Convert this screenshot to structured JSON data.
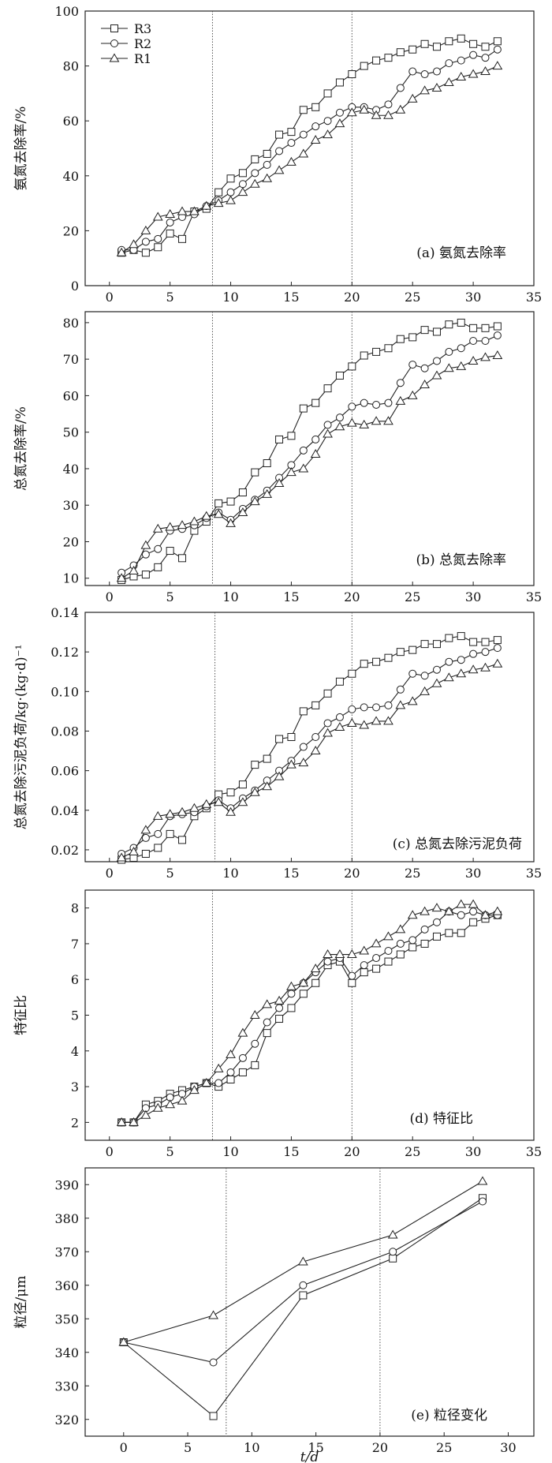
{
  "chart_data": [
    {
      "type": "line",
      "panel_label": "(a) 氨氮去除率",
      "ylabel": "氨氮去除率/%",
      "xlim": [
        -2,
        35
      ],
      "ylim": [
        0,
        100
      ],
      "xticks": [
        0,
        5,
        10,
        15,
        20,
        25,
        30,
        35
      ],
      "yticks": [
        0,
        20,
        40,
        60,
        80,
        100
      ],
      "xtick_labels": [
        "0",
        "5",
        "10",
        "15",
        "20",
        "25",
        "30",
        "35"
      ],
      "ytick_labels": [
        "0",
        "20",
        "40",
        "60",
        "80",
        "100"
      ],
      "vlines": [
        8.5,
        20
      ],
      "legend": [
        "R3",
        "R2",
        "R1"
      ],
      "legend_position": "top-left",
      "series": [
        {
          "name": "R3",
          "marker": "square",
          "x": [
            1,
            2,
            3,
            4,
            5,
            6,
            7,
            8,
            9,
            10,
            11,
            12,
            13,
            14,
            15,
            16,
            17,
            18,
            19,
            20,
            21,
            22,
            23,
            24,
            25,
            26,
            27,
            28,
            29,
            30,
            31,
            32
          ],
          "values": [
            12,
            13,
            12,
            14,
            19,
            17,
            27,
            28,
            34,
            39,
            41,
            46,
            48,
            55,
            56,
            64,
            65,
            70,
            74,
            77,
            80,
            82,
            83,
            85,
            86,
            88,
            87,
            89,
            90,
            88,
            87,
            89
          ]
        },
        {
          "name": "R2",
          "marker": "circle",
          "x": [
            1,
            2,
            3,
            4,
            5,
            6,
            7,
            8,
            9,
            10,
            11,
            12,
            13,
            14,
            15,
            16,
            17,
            18,
            19,
            20,
            21,
            22,
            23,
            24,
            25,
            26,
            27,
            28,
            29,
            30,
            31,
            32
          ],
          "values": [
            13,
            13,
            16,
            17,
            23,
            25,
            26,
            29,
            31,
            34,
            37,
            41,
            44,
            49,
            52,
            55,
            58,
            60,
            63,
            65,
            65,
            64,
            66,
            72,
            78,
            77,
            78,
            81,
            82,
            84,
            83,
            86
          ]
        },
        {
          "name": "R1",
          "marker": "triangle",
          "x": [
            1,
            2,
            3,
            4,
            5,
            6,
            7,
            8,
            9,
            10,
            11,
            12,
            13,
            14,
            15,
            16,
            17,
            18,
            19,
            20,
            21,
            22,
            23,
            24,
            25,
            26,
            27,
            28,
            29,
            30,
            31,
            32
          ],
          "values": [
            12,
            15,
            20,
            25,
            26,
            27,
            27,
            29,
            30,
            31,
            34,
            37,
            39,
            42,
            45,
            48,
            53,
            55,
            59,
            63,
            64,
            62,
            62,
            64,
            68,
            71,
            72,
            74,
            76,
            77,
            78,
            80
          ]
        }
      ]
    },
    {
      "type": "line",
      "panel_label": "(b) 总氮去除率",
      "ylabel": "总氮去除率/%",
      "xlim": [
        -2,
        35
      ],
      "ylim": [
        8,
        83
      ],
      "xticks": [
        0,
        5,
        10,
        15,
        20,
        25,
        30,
        35
      ],
      "yticks": [
        10,
        20,
        30,
        40,
        50,
        60,
        70,
        80
      ],
      "xtick_labels": [
        "0",
        "5",
        "10",
        "15",
        "20",
        "25",
        "30",
        "35"
      ],
      "ytick_labels": [
        "10",
        "20",
        "30",
        "40",
        "50",
        "60",
        "70",
        "80"
      ],
      "vlines": [
        8.5,
        20
      ],
      "series": [
        {
          "name": "R3",
          "marker": "square",
          "x": [
            1,
            2,
            3,
            4,
            5,
            6,
            7,
            8,
            9,
            10,
            11,
            12,
            13,
            14,
            15,
            16,
            17,
            18,
            19,
            20,
            21,
            22,
            23,
            24,
            25,
            26,
            27,
            28,
            29,
            30,
            31,
            32
          ],
          "values": [
            9.5,
            10.5,
            11,
            13,
            17.5,
            15.5,
            23,
            25.5,
            30.5,
            31,
            33.5,
            39,
            41.5,
            48,
            49,
            56.5,
            58,
            62,
            65.5,
            68,
            71,
            72,
            73,
            75.5,
            76,
            78,
            77.5,
            79.5,
            80,
            78.5,
            78.5,
            79
          ]
        },
        {
          "name": "R2",
          "marker": "circle",
          "x": [
            1,
            2,
            3,
            4,
            5,
            6,
            7,
            8,
            9,
            10,
            11,
            12,
            13,
            14,
            15,
            16,
            17,
            18,
            19,
            20,
            21,
            22,
            23,
            24,
            25,
            26,
            27,
            28,
            29,
            30,
            31,
            32
          ],
          "values": [
            11.5,
            13.5,
            16.5,
            18,
            23,
            23.5,
            24.5,
            26.5,
            28,
            26,
            29,
            31.5,
            34,
            37.5,
            41,
            45,
            48,
            52,
            54,
            57,
            58,
            57.5,
            58,
            63.5,
            68.5,
            67.5,
            69.5,
            72,
            73,
            75,
            75,
            76.5
          ]
        },
        {
          "name": "R1",
          "marker": "triangle",
          "x": [
            1,
            2,
            3,
            4,
            5,
            6,
            7,
            8,
            9,
            10,
            11,
            12,
            13,
            14,
            15,
            16,
            17,
            18,
            19,
            20,
            21,
            22,
            23,
            24,
            25,
            26,
            27,
            28,
            29,
            30,
            31,
            32
          ],
          "values": [
            10,
            12,
            19,
            23.5,
            24,
            24.5,
            25.5,
            27,
            27.5,
            25,
            28,
            31,
            33,
            36,
            39,
            40,
            44,
            49.5,
            51.5,
            52.5,
            52,
            53,
            53,
            58.5,
            60,
            63,
            65.5,
            67.5,
            68,
            69.5,
            70.5,
            71
          ]
        }
      ]
    },
    {
      "type": "line",
      "panel_label": "(c) 总氮去除污泥负荷",
      "ylabel": "总氮去除污泥负荷/kg·(kg·d)⁻¹",
      "xlim": [
        -2,
        35
      ],
      "ylim": [
        0.014,
        0.14
      ],
      "xticks": [
        0,
        5,
        10,
        15,
        20,
        25,
        30,
        35
      ],
      "yticks": [
        0.02,
        0.04,
        0.06,
        0.08,
        0.1,
        0.12,
        0.14
      ],
      "xtick_labels": [
        "0",
        "5",
        "10",
        "15",
        "20",
        "25",
        "30",
        "35"
      ],
      "ytick_labels": [
        "0.02",
        "0.04",
        "0.06",
        "0.08",
        "0.10",
        "0.12",
        "0.14"
      ],
      "vlines": [
        8.7,
        20
      ],
      "series": [
        {
          "name": "R3",
          "marker": "square",
          "x": [
            1,
            2,
            3,
            4,
            5,
            6,
            7,
            8,
            9,
            10,
            11,
            12,
            13,
            14,
            15,
            16,
            17,
            18,
            19,
            20,
            21,
            22,
            23,
            24,
            25,
            26,
            27,
            28,
            29,
            30,
            31,
            32
          ],
          "values": [
            0.015,
            0.016,
            0.018,
            0.021,
            0.028,
            0.025,
            0.037,
            0.041,
            0.048,
            0.049,
            0.053,
            0.063,
            0.066,
            0.076,
            0.077,
            0.09,
            0.093,
            0.099,
            0.105,
            0.109,
            0.114,
            0.115,
            0.117,
            0.12,
            0.121,
            0.124,
            0.124,
            0.127,
            0.128,
            0.125,
            0.125,
            0.126
          ]
        },
        {
          "name": "R2",
          "marker": "circle",
          "x": [
            1,
            2,
            3,
            4,
            5,
            6,
            7,
            8,
            9,
            10,
            11,
            12,
            13,
            14,
            15,
            16,
            17,
            18,
            19,
            20,
            21,
            22,
            23,
            24,
            25,
            26,
            27,
            28,
            29,
            30,
            31,
            32
          ],
          "values": [
            0.018,
            0.021,
            0.026,
            0.028,
            0.037,
            0.038,
            0.039,
            0.042,
            0.045,
            0.041,
            0.046,
            0.05,
            0.055,
            0.06,
            0.065,
            0.072,
            0.077,
            0.084,
            0.087,
            0.091,
            0.092,
            0.092,
            0.093,
            0.101,
            0.109,
            0.108,
            0.111,
            0.115,
            0.116,
            0.119,
            0.12,
            0.122
          ]
        },
        {
          "name": "R1",
          "marker": "triangle",
          "x": [
            1,
            2,
            3,
            4,
            5,
            6,
            7,
            8,
            9,
            10,
            11,
            12,
            13,
            14,
            15,
            16,
            17,
            18,
            19,
            20,
            21,
            22,
            23,
            24,
            25,
            26,
            27,
            28,
            29,
            30,
            31,
            32
          ],
          "values": [
            0.016,
            0.019,
            0.03,
            0.037,
            0.038,
            0.039,
            0.041,
            0.043,
            0.044,
            0.039,
            0.044,
            0.049,
            0.052,
            0.057,
            0.063,
            0.064,
            0.07,
            0.079,
            0.082,
            0.084,
            0.083,
            0.085,
            0.085,
            0.093,
            0.095,
            0.1,
            0.104,
            0.107,
            0.109,
            0.111,
            0.112,
            0.114
          ]
        }
      ]
    },
    {
      "type": "line",
      "panel_label": "(d) 特征比",
      "ylabel": "特征比",
      "xlim": [
        -2,
        35
      ],
      "ylim": [
        1.5,
        8.5
      ],
      "xticks": [
        0,
        5,
        10,
        15,
        20,
        25,
        30,
        35
      ],
      "yticks": [
        2,
        3,
        4,
        5,
        6,
        7,
        8
      ],
      "xtick_labels": [
        "0",
        "5",
        "10",
        "15",
        "20",
        "25",
        "30",
        "35"
      ],
      "ytick_labels": [
        "2",
        "3",
        "4",
        "5",
        "6",
        "7",
        "8"
      ],
      "vlines": [
        8.5,
        20
      ],
      "series": [
        {
          "name": "R3",
          "marker": "square",
          "x": [
            1,
            2,
            3,
            4,
            5,
            6,
            7,
            8,
            9,
            10,
            11,
            12,
            13,
            14,
            15,
            16,
            17,
            18,
            19,
            20,
            21,
            22,
            23,
            24,
            25,
            26,
            27,
            28,
            29,
            30,
            31,
            32
          ],
          "values": [
            2,
            2,
            2.5,
            2.6,
            2.8,
            2.9,
            3,
            3.1,
            3,
            3.2,
            3.4,
            3.6,
            4.5,
            4.9,
            5.2,
            5.6,
            5.9,
            6.4,
            6.5,
            5.9,
            6.2,
            6.3,
            6.5,
            6.7,
            6.9,
            7,
            7.2,
            7.3,
            7.3,
            7.6,
            7.7,
            7.8
          ]
        },
        {
          "name": "R2",
          "marker": "circle",
          "x": [
            1,
            2,
            3,
            4,
            5,
            6,
            7,
            8,
            9,
            10,
            11,
            12,
            13,
            14,
            15,
            16,
            17,
            18,
            19,
            20,
            21,
            22,
            23,
            24,
            25,
            26,
            27,
            28,
            29,
            30,
            31,
            32
          ],
          "values": [
            2,
            2,
            2.4,
            2.5,
            2.7,
            2.8,
            3,
            3.1,
            3.1,
            3.4,
            3.8,
            4.2,
            4.8,
            5.2,
            5.6,
            5.9,
            6.2,
            6.5,
            6.6,
            6.1,
            6.4,
            6.6,
            6.8,
            7,
            7.1,
            7.4,
            7.6,
            7.9,
            7.8,
            7.9,
            7.8,
            7.8
          ]
        },
        {
          "name": "R1",
          "marker": "triangle",
          "x": [
            1,
            2,
            3,
            4,
            5,
            6,
            7,
            8,
            9,
            10,
            11,
            12,
            13,
            14,
            15,
            16,
            17,
            18,
            19,
            20,
            21,
            22,
            23,
            24,
            25,
            26,
            27,
            28,
            29,
            30,
            31,
            32
          ],
          "values": [
            2,
            2,
            2.2,
            2.4,
            2.5,
            2.6,
            2.9,
            3.1,
            3.5,
            3.9,
            4.5,
            5,
            5.3,
            5.4,
            5.8,
            5.9,
            6.3,
            6.7,
            6.7,
            6.7,
            6.8,
            7,
            7.2,
            7.4,
            7.8,
            7.9,
            8,
            7.9,
            8.1,
            8.1,
            7.8,
            7.9
          ]
        }
      ]
    },
    {
      "type": "line",
      "panel_label": "(e) 粒径变化",
      "ylabel": "粒径/μm",
      "xlabel": "t/d",
      "xlim": [
        -3,
        32
      ],
      "ylim": [
        315,
        395
      ],
      "xticks": [
        0,
        5,
        10,
        15,
        20,
        25,
        30
      ],
      "yticks": [
        320,
        330,
        340,
        350,
        360,
        370,
        380,
        390
      ],
      "xtick_labels": [
        "0",
        "5",
        "10",
        "15",
        "20",
        "25",
        "30"
      ],
      "ytick_labels": [
        "320",
        "330",
        "340",
        "350",
        "360",
        "370",
        "380",
        "390"
      ],
      "vlines": [
        8,
        20
      ],
      "series": [
        {
          "name": "R3",
          "marker": "square",
          "x": [
            0,
            7,
            14,
            21,
            28
          ],
          "values": [
            343,
            321,
            357,
            368,
            386
          ]
        },
        {
          "name": "R2",
          "marker": "circle",
          "x": [
            0,
            7,
            14,
            21,
            28
          ],
          "values": [
            343,
            337,
            360,
            370,
            385
          ]
        },
        {
          "name": "R1",
          "marker": "triangle",
          "x": [
            0,
            7,
            14,
            21,
            28
          ],
          "values": [
            343,
            351,
            367,
            375,
            391
          ]
        }
      ]
    }
  ]
}
